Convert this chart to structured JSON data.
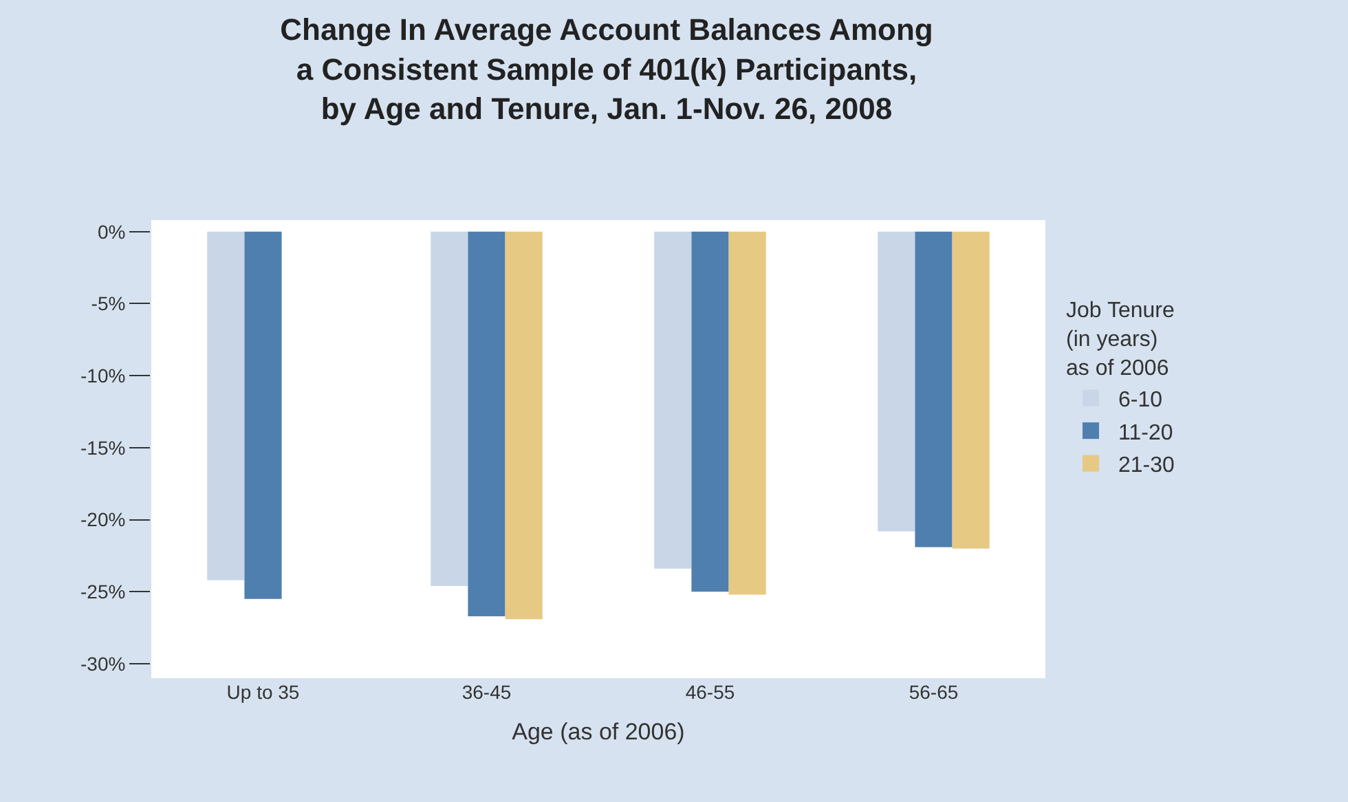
{
  "chart_data": {
    "type": "bar",
    "title": "Change In Average Account Balances Among\na Consistent Sample of 401(k) Participants,\nby Age and Tenure, Jan. 1-Nov. 26, 2008",
    "xlabel": "Age (as of 2006)",
    "legend_title": "Job Tenure\n(in years)\nas of 2006",
    "categories": [
      "Up to 35",
      "36-45",
      "46-55",
      "56-65"
    ],
    "series": [
      {
        "name": "6-10",
        "color": "#c8d6e8",
        "values": [
          -24.2,
          -24.6,
          -23.4,
          -20.8
        ]
      },
      {
        "name": "11-20",
        "color": "#4f7fae",
        "values": [
          -25.5,
          -26.7,
          -25.0,
          -21.9
        ]
      },
      {
        "name": "21-30",
        "color": "#e6c983",
        "values": [
          null,
          -26.9,
          -25.2,
          -22.0
        ]
      }
    ],
    "ylim": [
      -31,
      0.8
    ],
    "yticks": [
      {
        "value": 0,
        "label": "0%"
      },
      {
        "value": -5,
        "label": "-5%"
      },
      {
        "value": -10,
        "label": "-10%"
      },
      {
        "value": -15,
        "label": "-15%"
      },
      {
        "value": -20,
        "label": "-20%"
      },
      {
        "value": -25,
        "label": "-25%"
      },
      {
        "value": -30,
        "label": "-30%"
      }
    ],
    "legend": "right"
  }
}
